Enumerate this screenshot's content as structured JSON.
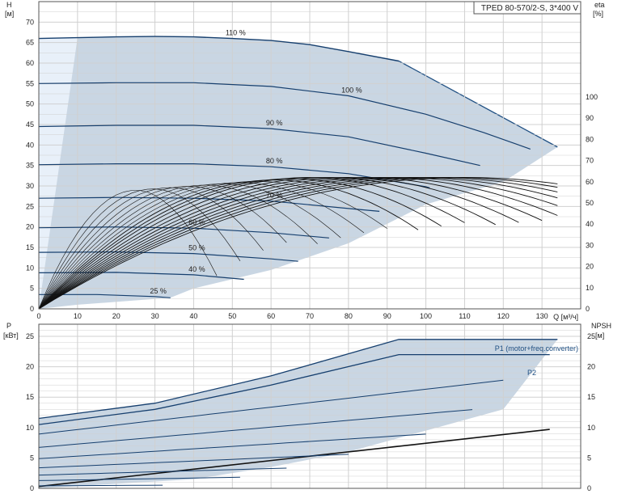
{
  "chart_data": [
    {
      "type": "line",
      "title": "TPED 80-570/2-S, 3*400 V",
      "xlabel": "Q [м³/ч]",
      "ylabel_left": "H",
      "ylabel_left_unit": "[м]",
      "ylabel_right": "eta",
      "ylabel_right_unit": "[%]",
      "xlim": [
        0,
        140
      ],
      "ylim_left": [
        0,
        75
      ],
      "ylim_right": [
        0,
        145
      ],
      "xticks": [
        0,
        10,
        20,
        30,
        40,
        50,
        60,
        70,
        80,
        90,
        100,
        110,
        120,
        130
      ],
      "yticks_left": [
        0,
        5,
        10,
        15,
        20,
        25,
        30,
        35,
        40,
        45,
        50,
        55,
        60,
        65,
        70
      ],
      "yticks_right": [
        0,
        10,
        20,
        30,
        40,
        50,
        60,
        70,
        80,
        90,
        100
      ],
      "grid": true,
      "series": [
        {
          "name": "110 %",
          "x": [
            0,
            10,
            20,
            30,
            40,
            50,
            60,
            70,
            80,
            93
          ],
          "y": [
            66,
            66.2,
            66.4,
            66.5,
            66.4,
            66,
            65.5,
            64.5,
            62.8,
            60.5
          ]
        },
        {
          "name": "100 %",
          "x": [
            0,
            20,
            40,
            60,
            80,
            100,
            115,
            127
          ],
          "y": [
            55,
            55.2,
            55.2,
            54.3,
            52,
            47.5,
            43,
            39
          ]
        },
        {
          "name": "90 %",
          "x": [
            0,
            20,
            40,
            60,
            80,
            100,
            114
          ],
          "y": [
            44.5,
            44.8,
            44.8,
            44,
            42,
            38,
            35
          ]
        },
        {
          "name": "80 %",
          "x": [
            0,
            20,
            40,
            60,
            80,
            100,
            101
          ],
          "y": [
            35.2,
            35.4,
            35.4,
            34.7,
            33,
            29.8,
            29.5
          ]
        },
        {
          "name": "70 %",
          "x": [
            0,
            20,
            40,
            60,
            80,
            88
          ],
          "y": [
            27,
            27.2,
            27,
            26.3,
            24.5,
            23.8
          ]
        },
        {
          "name": "60 %",
          "x": [
            0,
            20,
            40,
            60,
            75
          ],
          "y": [
            19.8,
            20,
            19.7,
            18.6,
            17.3
          ]
        },
        {
          "name": "50 %",
          "x": [
            0,
            20,
            40,
            60,
            67
          ],
          "y": [
            13.8,
            13.9,
            13.5,
            12.2,
            11.6
          ]
        },
        {
          "name": "40 %",
          "x": [
            0,
            20,
            40,
            53
          ],
          "y": [
            8.8,
            8.9,
            8.3,
            7.2
          ]
        },
        {
          "name": "25 %",
          "x": [
            0,
            15,
            30,
            34
          ],
          "y": [
            3.5,
            3.5,
            3,
            2.7
          ]
        }
      ]
    },
    {
      "type": "line",
      "title": "",
      "xlabel": "",
      "ylabel_left": "P",
      "ylabel_left_unit": "[кВт]",
      "ylabel_right": "NPSH",
      "ylabel_right_unit": "[м]",
      "xlim": [
        0,
        140
      ],
      "ylim_left": [
        0,
        27
      ],
      "yticks_left": [
        0,
        5,
        10,
        15,
        20,
        25
      ],
      "yticks_right": [
        0,
        5,
        10,
        15,
        20,
        25
      ],
      "grid": true,
      "legend": [
        "P1 (motor+freq.converter)",
        "P2"
      ],
      "series": [
        {
          "name": "P1 (motor+freq.converter)",
          "x": [
            0,
            30,
            60,
            93,
            98,
            134
          ],
          "y": [
            11.5,
            14,
            18.5,
            24.5,
            24.5,
            24.5
          ]
        },
        {
          "name": "P2",
          "x": [
            0,
            30,
            60,
            93,
            132
          ],
          "y": [
            10.5,
            13,
            17,
            22,
            22
          ]
        },
        {
          "name": "",
          "x": [
            0,
            132
          ],
          "y": [
            0.3,
            9.7
          ]
        }
      ]
    }
  ],
  "colors": {
    "curve": "#163f6e",
    "envelope": "#c9d6e3",
    "envelope_edge": "#1f4f82",
    "low_zone": "#e8f0f9",
    "grid": "#d0d0d0",
    "legend_text": "#1f4f82"
  }
}
